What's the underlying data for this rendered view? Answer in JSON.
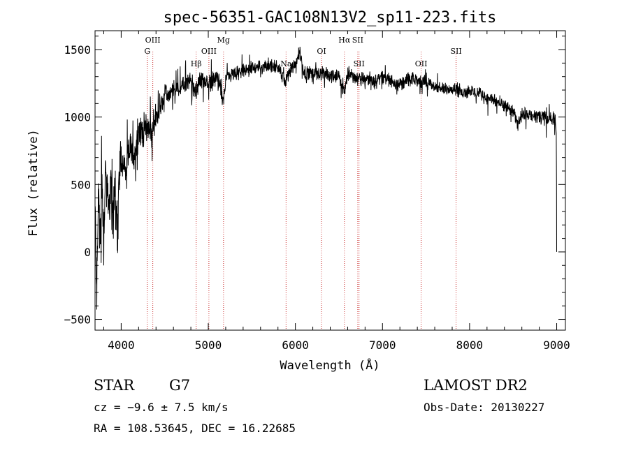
{
  "chart_data": {
    "type": "line",
    "title": "spec-56351-GAC108N13V2_sp11-223.fits",
    "xlabel": "Wavelength (Å)",
    "ylabel": "Flux (relative)",
    "xlim": [
      3700,
      9100
    ],
    "ylim": [
      -580,
      1640
    ],
    "xticks": [
      4000,
      5000,
      6000,
      7000,
      8000,
      9000
    ],
    "xtick_labels": [
      "4000",
      "5000",
      "6000",
      "7000",
      "8000",
      "9000"
    ],
    "yticks": [
      -500,
      0,
      500,
      1000,
      1500
    ],
    "ytick_labels": [
      "−500",
      "0",
      "500",
      "1000",
      "1500"
    ],
    "grid": false,
    "series": [
      {
        "x": [
          3700,
          3720,
          3740,
          3760,
          3780,
          3800,
          3820,
          3850,
          3880,
          3900,
          3930,
          3960,
          3980,
          4000,
          4050,
          4100,
          4150,
          4200,
          4250,
          4300,
          4350,
          4400,
          4450,
          4500,
          4550,
          4600,
          4700,
          4800,
          4860,
          4900,
          5000,
          5100,
          5175,
          5200,
          5300,
          5400,
          5500,
          5600,
          5700,
          5800,
          5890,
          5900,
          6000,
          6050,
          6100,
          6200,
          6300,
          6400,
          6500,
          6563,
          6600,
          6700,
          6800,
          6900,
          7000,
          7100,
          7200,
          7300,
          7400,
          7500,
          7600,
          7700,
          7800,
          7900,
          8000,
          8100,
          8200,
          8300,
          8400,
          8500,
          8550,
          8600,
          8700,
          8800,
          8900,
          8950,
          8990,
          9000
        ],
        "y": [
          320,
          -280,
          400,
          150,
          520,
          100,
          650,
          300,
          500,
          140,
          580,
          60,
          650,
          700,
          600,
          780,
          720,
          880,
          900,
          940,
          880,
          1000,
          1050,
          1180,
          1150,
          1200,
          1230,
          1270,
          1180,
          1280,
          1250,
          1300,
          1120,
          1290,
          1320,
          1340,
          1360,
          1370,
          1380,
          1370,
          1250,
          1300,
          1400,
          1480,
          1330,
          1330,
          1320,
          1310,
          1300,
          1180,
          1330,
          1290,
          1280,
          1270,
          1300,
          1270,
          1240,
          1280,
          1270,
          1250,
          1230,
          1200,
          1220,
          1190,
          1190,
          1180,
          1140,
          1120,
          1080,
          1040,
          940,
          1030,
          1010,
          1000,
          980,
          1000,
          980,
          0
        ]
      }
    ],
    "lines": [
      {
        "x": 4300,
        "label": "G",
        "row": 2
      },
      {
        "x": 4363,
        "label": "OIII",
        "row": 1
      },
      {
        "x": 4861,
        "label": "Hβ",
        "row": 4
      },
      {
        "x": 5007,
        "label": "OIII",
        "row": 3
      },
      {
        "x": 5175,
        "label": "Mg",
        "row": 1
      },
      {
        "x": 5893,
        "label": "Na",
        "row": 4
      },
      {
        "x": 6300,
        "label": "OI",
        "row": 3
      },
      {
        "x": 6563,
        "label": "Hα",
        "row": 1
      },
      {
        "x": 6716,
        "label": "SII",
        "row": 1
      },
      {
        "x": 6731,
        "label": "SII",
        "row": 4
      },
      {
        "x": 7444,
        "label": "OII",
        "row": 4
      },
      {
        "x": 7845,
        "label": "SII",
        "row": 3
      }
    ]
  },
  "info": {
    "object_type": "STAR",
    "subclass": "G7",
    "cz": "cz = −9.6 ± 7.5 km/s",
    "coords": "RA = 108.53645, DEC =  16.22685",
    "survey": "LAMOST DR2",
    "obs_date": "Obs-Date: 20130227"
  },
  "colors": {
    "spectrum": "#000000",
    "line_markers": "#cc3333",
    "background": "#ffffff"
  }
}
